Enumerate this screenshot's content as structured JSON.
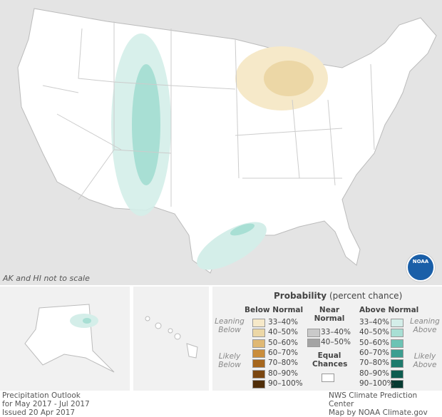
{
  "map_note": "AK and HI not to scale",
  "legend": {
    "title": "Probability",
    "title_sub": "(percent chance)",
    "below": {
      "heading": "Below Normal",
      "leaning": "Leaning Below",
      "likely": "Likely Below",
      "items": [
        {
          "label": "33–40%",
          "color": "#f6e9c9"
        },
        {
          "label": "40–50%",
          "color": "#ecd7a6"
        },
        {
          "label": "50–60%",
          "color": "#dfb874"
        },
        {
          "label": "60–70%",
          "color": "#c98d3c"
        },
        {
          "label": "70–80%",
          "color": "#a5661d"
        },
        {
          "label": "80–90%",
          "color": "#7a4610"
        },
        {
          "label": "90–100%",
          "color": "#4f2d08"
        }
      ]
    },
    "near": {
      "heading": "Near Normal",
      "items": [
        {
          "label": "33–40%",
          "color": "#c9c9c9"
        },
        {
          "label": "40–50%",
          "color": "#a4a4a4"
        }
      ]
    },
    "equal": {
      "heading": "Equal Chances",
      "color": "#ffffff"
    },
    "above": {
      "heading": "Above Normal",
      "leaning": "Leaning Above",
      "likely": "Likely Above",
      "items": [
        {
          "label": "33–40%",
          "color": "#d4eee9"
        },
        {
          "label": "40–50%",
          "color": "#a8dfd4"
        },
        {
          "label": "50–60%",
          "color": "#6cc3b4"
        },
        {
          "label": "60–70%",
          "color": "#3d9e90"
        },
        {
          "label": "70–80%",
          "color": "#1e7a6c"
        },
        {
          "label": "80–90%",
          "color": "#0d5c4f"
        },
        {
          "label": "90–100%",
          "color": "#063a31"
        }
      ]
    }
  },
  "footer": {
    "left": [
      "Precipitation Outlook",
      "for May 2017 - Jul 2017",
      "Issued 20 Apr 2017"
    ],
    "right": [
      "NWS Climate Prediction Center",
      "Map by NOAA Climate.gov"
    ]
  },
  "logo": "NOAA"
}
